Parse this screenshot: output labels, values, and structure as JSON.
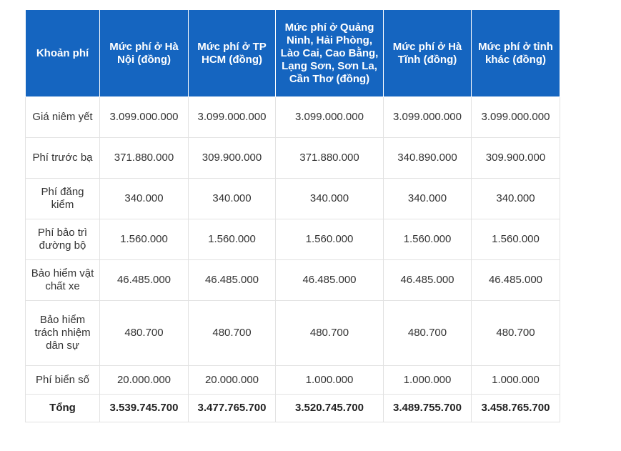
{
  "table": {
    "headers": [
      "Khoản phí",
      "Mức phí ở Hà Nội (đồng)",
      "Mức phí ở TP HCM (đồng)",
      "Mức phí ở Quảng Ninh, Hải Phòng, Lào Cai, Cao Bằng, Lạng Sơn, Sơn La, Cần Thơ (đồng)",
      "Mức phí ở Hà Tĩnh (đồng)",
      "Mức phí ở tỉnh khác (đồng)"
    ],
    "rows": [
      [
        "Giá niêm yết",
        "3.099.000.000",
        "3.099.000.000",
        "3.099.000.000",
        "3.099.000.000",
        "3.099.000.000"
      ],
      [
        "Phí trước bạ",
        "371.880.000",
        "309.900.000",
        "371.880.000",
        "340.890.000",
        "309.900.000"
      ],
      [
        "Phí đăng kiểm",
        "340.000",
        "340.000",
        "340.000",
        "340.000",
        "340.000"
      ],
      [
        "Phí bảo trì đường bộ",
        "1.560.000",
        "1.560.000",
        "1.560.000",
        "1.560.000",
        "1.560.000"
      ],
      [
        "Bảo hiểm vật chất xe",
        "46.485.000",
        "46.485.000",
        "46.485.000",
        "46.485.000",
        "46.485.000"
      ],
      [
        "Bảo hiểm trách nhiệm dân sự",
        "480.700",
        "480.700",
        "480.700",
        "480.700",
        "480.700"
      ],
      [
        "Phí biển số",
        "20.000.000",
        "20.000.000",
        "1.000.000",
        "1.000.000",
        "1.000.000"
      ],
      [
        "Tổng",
        "3.539.745.700",
        "3.477.765.700",
        "3.520.745.700",
        "3.489.755.700",
        "3.458.765.700"
      ]
    ]
  },
  "colors": {
    "header_bg": "#1565c0",
    "header_text": "#ffffff",
    "border": "#e2e2e2"
  }
}
